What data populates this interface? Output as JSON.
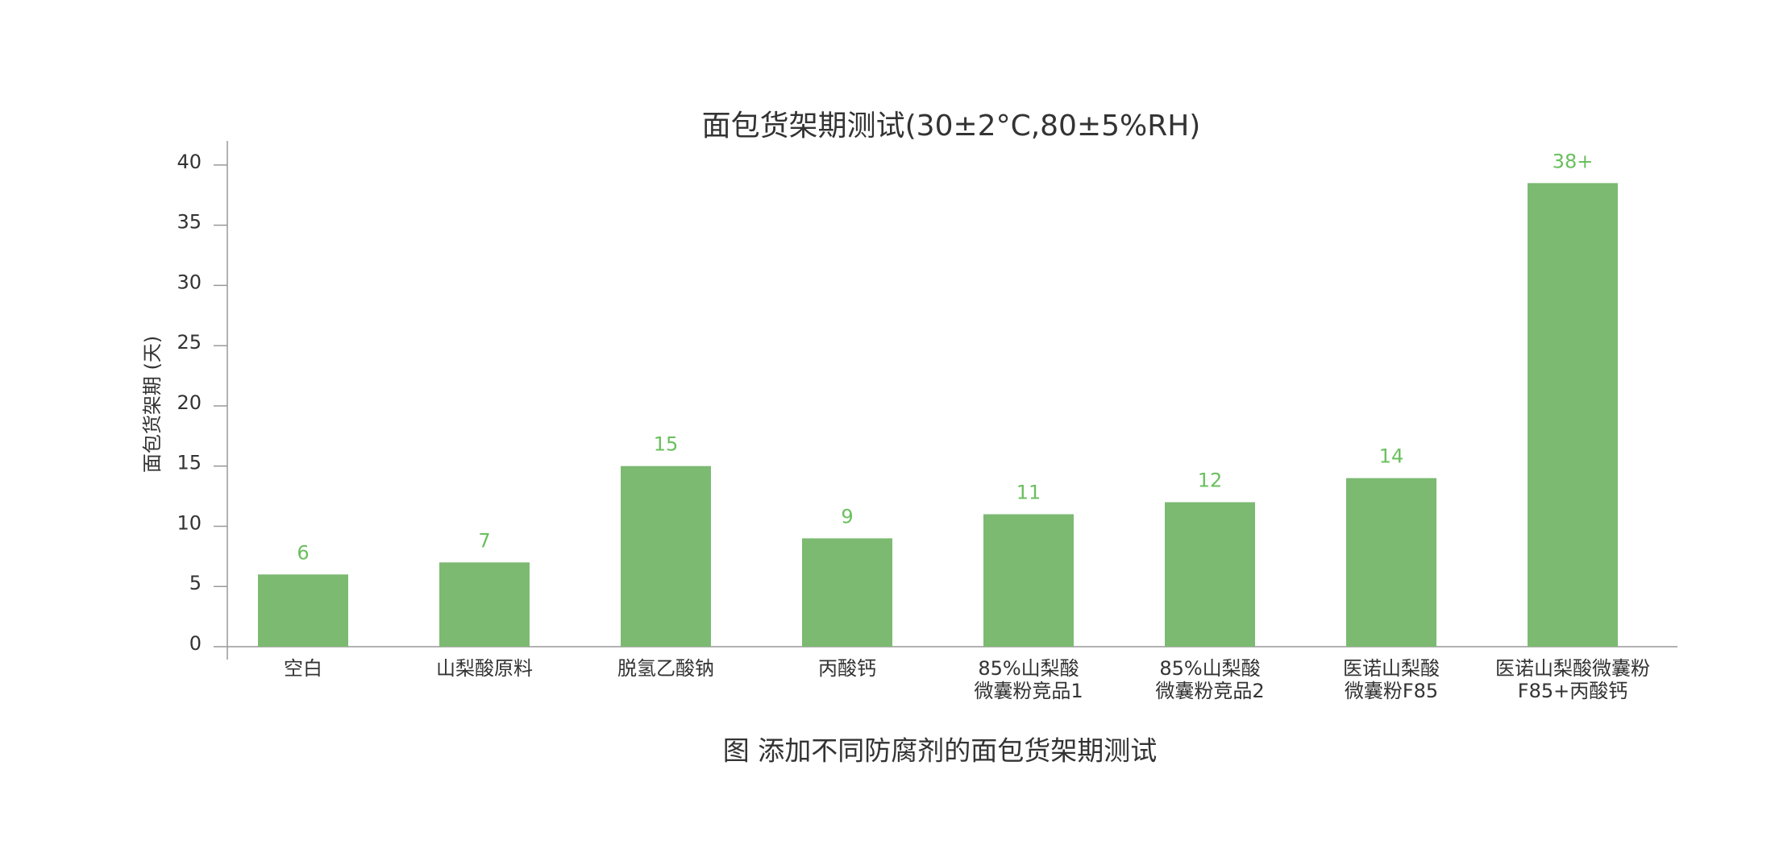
{
  "chart_data": {
    "type": "bar",
    "title": "面包货架期测试(30±2°C,80±5%RH)",
    "y_label": "面包货架期 (天)",
    "caption": "图 添加不同防腐剂的面包货架期测试",
    "categories": [
      "空白",
      "山梨酸原料",
      "脱氢乙酸钠",
      "丙酸钙",
      "85%山梨酸\n微囊粉竞品1",
      "85%山梨酸\n微囊粉竞品2",
      "医诺山梨酸\n微囊粉F85",
      "医诺山梨酸微囊粉\nF85+丙酸钙"
    ],
    "values": [
      6,
      7,
      15,
      9,
      11,
      12,
      14,
      38.5
    ],
    "value_labels": [
      "6",
      "7",
      "15",
      "9",
      "11",
      "12",
      "14",
      "38+"
    ],
    "color": "#7cba72",
    "label_color": "#6abf5e",
    "ylim": [
      0,
      42
    ],
    "yticks": [
      0,
      5,
      10,
      15,
      20,
      25,
      30,
      35,
      40
    ],
    "grid": false
  }
}
